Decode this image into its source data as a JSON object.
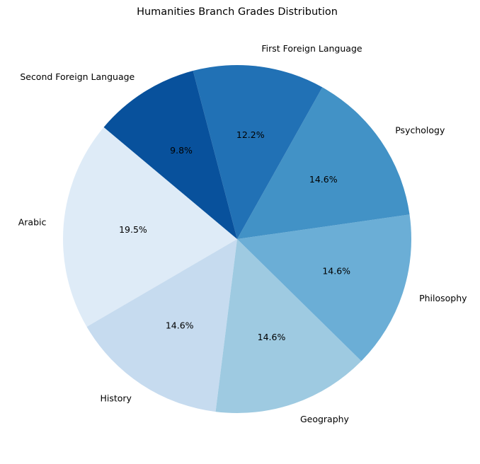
{
  "chart_data": {
    "type": "pie",
    "title": "Humanities Branch Grades Distribution",
    "categories": [
      "Arabic",
      "History",
      "Geography",
      "Philosophy",
      "Psychology",
      "First Foreign Language",
      "Second Foreign Language"
    ],
    "values": [
      19.5,
      14.6,
      14.6,
      14.6,
      14.6,
      12.2,
      9.8
    ],
    "value_labels": [
      "19.5%",
      "14.6%",
      "14.6%",
      "14.6%",
      "14.6%",
      "12.2%",
      "9.8%"
    ],
    "colors": [
      "#deebf7",
      "#c6dbef",
      "#9ecae1",
      "#6baed6",
      "#4292c6",
      "#2171b5",
      "#08519c"
    ]
  }
}
